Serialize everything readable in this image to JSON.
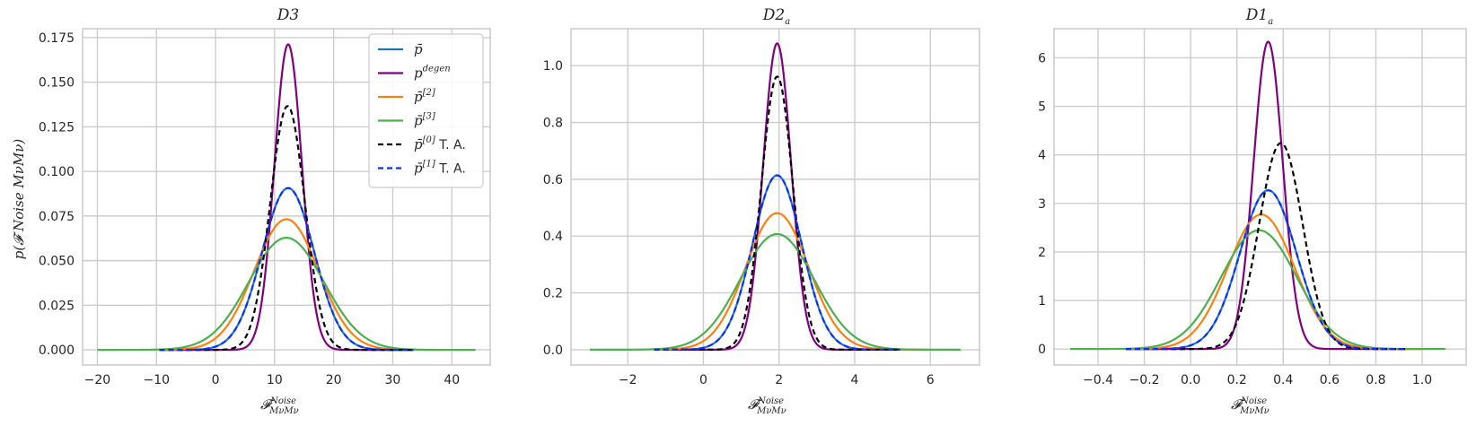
{
  "style": {
    "grid_color": "#cccccc",
    "spine_color": "#cccccc",
    "text_color": "#262626",
    "legend_border": "#cccccc"
  },
  "chart_data": [
    {
      "type": "line",
      "title": "D3",
      "xlabel": "𝓕",
      "xlabel_sup": "Noise",
      "xlabel_sub": "MνMν",
      "ylabel": "p(𝓕 Noise MνMν)",
      "xlim": [
        -22.5,
        46.5
      ],
      "ylim": [
        -0.0085,
        0.18
      ],
      "xticks": [
        -20,
        -10,
        0,
        10,
        20,
        30,
        40
      ],
      "xtick_labels": [
        "−20",
        "−10",
        "0",
        "10",
        "20",
        "30",
        "40"
      ],
      "yticks": [
        0.0,
        0.025,
        0.05,
        0.075,
        0.1,
        0.125,
        0.15,
        0.175
      ],
      "ytick_labels": [
        "0.000",
        "0.025",
        "0.050",
        "0.075",
        "0.100",
        "0.125",
        "0.150",
        "0.175"
      ],
      "grid": true,
      "legend": "top-right",
      "series": [
        {
          "name": "p̄",
          "mu": 12.3,
          "sigma": 4.4,
          "range": [
            -9.5,
            33.5
          ],
          "color": "#1f77b4",
          "dash": ""
        },
        {
          "name": "p^degen",
          "mu": 12.3,
          "sigma": 2.33,
          "range": [
            -9.5,
            33.5
          ],
          "color": "#800080",
          "dash": ""
        },
        {
          "name": "p̄^[2]",
          "mu": 12.0,
          "sigma": 5.45,
          "range": [
            -9.5,
            38.5
          ],
          "color": "#ff7f0e",
          "dash": ""
        },
        {
          "name": "p̄^[3]",
          "mu": 12.0,
          "sigma": 6.35,
          "range": [
            -20.0,
            44.0
          ],
          "color": "#4caf50",
          "dash": ""
        },
        {
          "name": "p̄^[0] T. A.",
          "mu": 12.2,
          "sigma": 2.92,
          "range": [
            -9.5,
            33.5
          ],
          "color": "#000000",
          "dash": "6,4"
        },
        {
          "name": "p̄^[1] T. A.",
          "mu": 12.3,
          "sigma": 4.4,
          "range": [
            -9.5,
            33.5
          ],
          "color": "#0a2eff",
          "dash": "6,4"
        }
      ]
    },
    {
      "type": "line",
      "title": "D2a",
      "title_main": "D2",
      "title_sub": "a",
      "xlabel": "𝓕",
      "xlabel_sup": "Noise",
      "xlabel_sub": "MνMν",
      "xlim": [
        -3.5,
        7.3
      ],
      "ylim": [
        -0.054,
        1.13
      ],
      "xticks": [
        -2,
        0,
        2,
        4,
        6
      ],
      "xtick_labels": [
        "−2",
        "0",
        "2",
        "4",
        "6"
      ],
      "yticks": [
        0.0,
        0.2,
        0.4,
        0.6,
        0.8,
        1.0
      ],
      "ytick_labels": [
        "0.0",
        "0.2",
        "0.4",
        "0.6",
        "0.8",
        "1.0"
      ],
      "grid": true,
      "series": [
        {
          "name": "p̄",
          "mu": 1.95,
          "sigma": 0.65,
          "range": [
            -1.3,
            5.2
          ],
          "color": "#1f77b4",
          "dash": ""
        },
        {
          "name": "p^degen",
          "mu": 1.95,
          "sigma": 0.37,
          "range": [
            -1.3,
            5.2
          ],
          "color": "#800080",
          "dash": ""
        },
        {
          "name": "p̄^[2]",
          "mu": 1.95,
          "sigma": 0.83,
          "range": [
            -1.3,
            5.9
          ],
          "color": "#ff7f0e",
          "dash": ""
        },
        {
          "name": "p̄^[3]",
          "mu": 1.95,
          "sigma": 0.98,
          "range": [
            -3.0,
            6.8
          ],
          "color": "#4caf50",
          "dash": ""
        },
        {
          "name": "p̄^[0] T. A.",
          "mu": 1.95,
          "sigma": 0.415,
          "range": [
            -1.3,
            5.2
          ],
          "color": "#000000",
          "dash": "6,4"
        },
        {
          "name": "p̄^[1] T. A.",
          "mu": 1.95,
          "sigma": 0.65,
          "range": [
            -1.3,
            5.2
          ],
          "color": "#0a2eff",
          "dash": "6,4"
        }
      ]
    },
    {
      "type": "line",
      "title": "D1a",
      "title_main": "D1",
      "title_sub": "a",
      "xlabel": "𝓕",
      "xlabel_sup": "Noise",
      "xlabel_sub": "MνMν",
      "xlim": [
        -0.59,
        1.19
      ],
      "ylim": [
        -0.33,
        6.6
      ],
      "xticks": [
        -0.4,
        -0.2,
        0.0,
        0.2,
        0.4,
        0.6,
        0.8,
        1.0
      ],
      "xtick_labels": [
        "−0.4",
        "−0.2",
        "0.0",
        "0.2",
        "0.4",
        "0.6",
        "0.8",
        "1.0"
      ],
      "yticks": [
        0,
        1,
        2,
        3,
        4,
        5,
        6
      ],
      "ytick_labels": [
        "0",
        "1",
        "2",
        "3",
        "4",
        "5",
        "6"
      ],
      "grid": true,
      "series": [
        {
          "name": "p̄",
          "mu": 0.335,
          "sigma": 0.122,
          "range": [
            -0.28,
            0.93
          ],
          "color": "#1f77b4",
          "dash": ""
        },
        {
          "name": "p^degen",
          "mu": 0.335,
          "sigma": 0.063,
          "range": [
            -0.28,
            0.93
          ],
          "color": "#800080",
          "dash": ""
        },
        {
          "name": "p̄^[2]",
          "mu": 0.305,
          "sigma": 0.144,
          "range": [
            -0.28,
            1.0
          ],
          "color": "#ff7f0e",
          "dash": ""
        },
        {
          "name": "p̄^[3]",
          "mu": 0.295,
          "sigma": 0.163,
          "range": [
            -0.52,
            1.1
          ],
          "color": "#4caf50",
          "dash": ""
        },
        {
          "name": "p̄^[0] T. A.",
          "mu": 0.39,
          "sigma": 0.094,
          "range": [
            -0.28,
            0.93
          ],
          "color": "#000000",
          "dash": "6,4"
        },
        {
          "name": "p̄^[1] T. A.",
          "mu": 0.335,
          "sigma": 0.122,
          "range": [
            -0.28,
            0.93
          ],
          "color": "#0a2eff",
          "dash": "6,4"
        }
      ]
    }
  ]
}
